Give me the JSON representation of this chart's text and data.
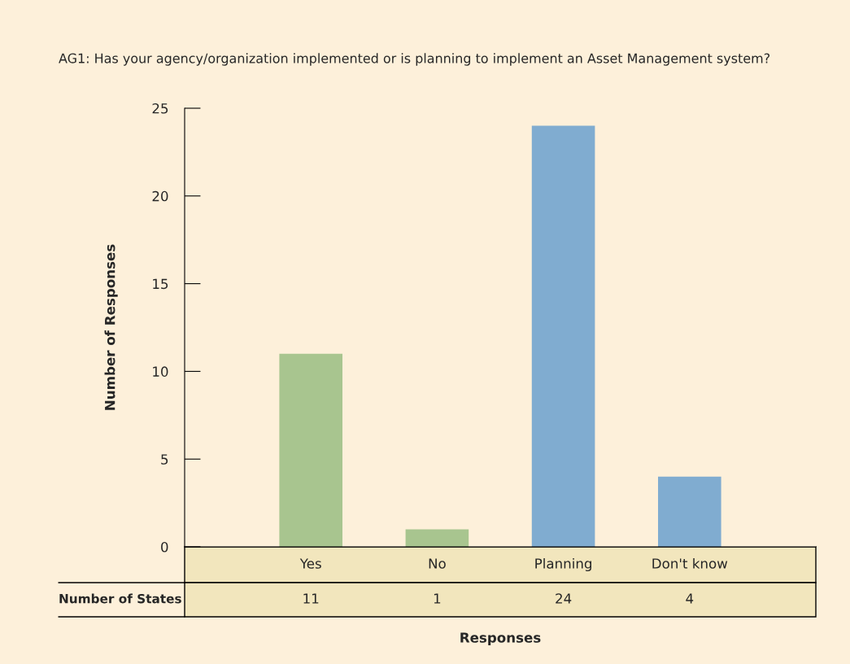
{
  "chart_data": {
    "type": "bar",
    "title": "AG1: Has your agency/organization implemented or is planning to implement an Asset Management system?",
    "xlabel": "Responses",
    "ylabel": "Number of Responses",
    "categories": [
      "Yes",
      "No",
      "Planning",
      "Don't know"
    ],
    "values": [
      11,
      1,
      24,
      4
    ],
    "colors": [
      "#a8c58f",
      "#a8c58f",
      "#80acd0",
      "#80acd0"
    ],
    "value_labels": [
      "11",
      "1",
      "24",
      "4"
    ],
    "annotations": [
      "Number of States"
    ],
    "ylim": [
      0,
      25
    ],
    "yticks": [
      0,
      5,
      10,
      15,
      20,
      25
    ],
    "grid": false,
    "legend": false
  }
}
